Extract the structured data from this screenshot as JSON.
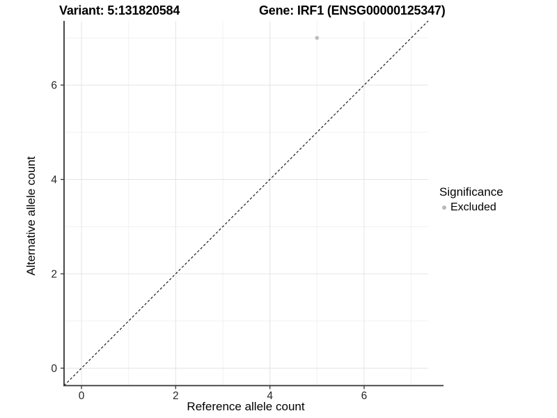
{
  "header": {
    "title_left": "Variant: 5:131820584",
    "title_right": "Gene: IRF1 (ENSG00000125347)"
  },
  "chart_data": {
    "type": "scatter",
    "title_left": "Variant: 5:131820584",
    "title_right": "Gene: IRF1 (ENSG00000125347)",
    "xlabel": "Reference allele count",
    "ylabel": "Alternative allele count",
    "xlim": [
      -0.37,
      7.36
    ],
    "ylim": [
      -0.37,
      7.36
    ],
    "xticks": [
      0,
      2,
      4,
      6
    ],
    "yticks": [
      0,
      2,
      4,
      6
    ],
    "grid": {
      "major": [
        0,
        2,
        4,
        6
      ],
      "minor": [
        1,
        3,
        5,
        7
      ],
      "major_color": "#e4e4e4",
      "minor_color": "#f1f1f1"
    },
    "identity_line": {
      "slope": 1,
      "intercept": 0,
      "style": "dashed",
      "color": "#1a1a1a"
    },
    "series": [
      {
        "name": "Excluded",
        "color": "#bdbdbd",
        "points": [
          {
            "x": 5,
            "y": 7
          }
        ]
      }
    ],
    "legend": {
      "title": "Significance",
      "position": "right",
      "items": [
        {
          "label": "Excluded",
          "color": "#b8b8b8"
        }
      ]
    },
    "axis_color": "#333333",
    "tick_label_color": "#262626"
  }
}
